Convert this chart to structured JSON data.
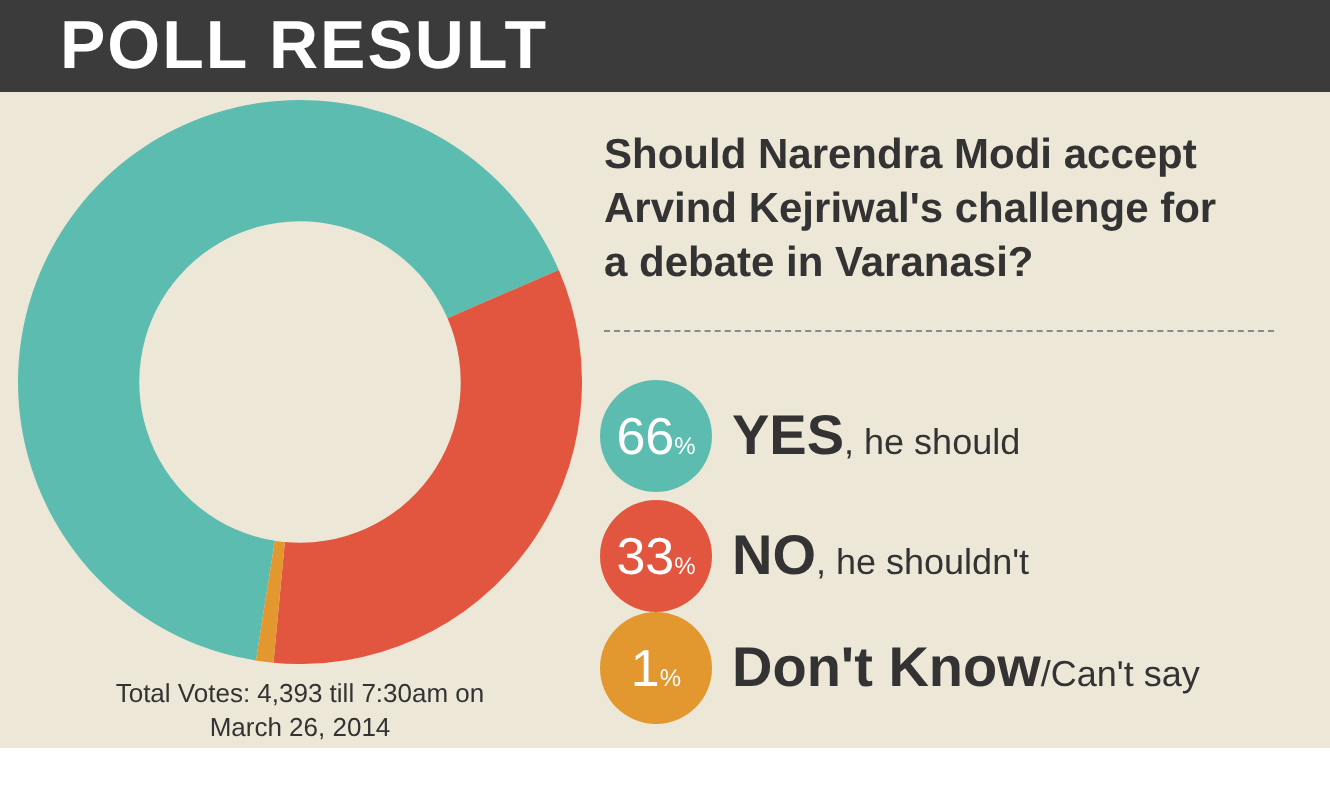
{
  "chart_data": {
    "type": "donut",
    "title": "POLL RESULT",
    "subtitle": "Should Narendra Modi accept Arvind Kejriwal's challenge for a debate in Varanasi?",
    "categories": [
      "YES, he should",
      "NO, he shouldn't",
      "Don't Know/Can't say"
    ],
    "values": [
      66,
      33,
      1
    ],
    "colors": [
      "#5dbcb0",
      "#e2553f",
      "#e3972f"
    ],
    "value_labels": [
      "66%",
      "33%",
      "1%"
    ],
    "legend": "right",
    "annotations": [
      "Total Votes: 4,393 till 7:30am on March 26, 2014"
    ]
  }
}
